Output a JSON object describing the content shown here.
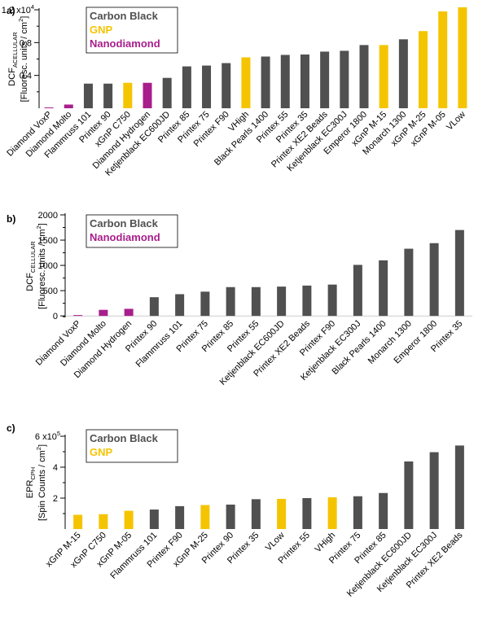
{
  "colors": {
    "carbon_black": "#505050",
    "gnp": "#f5c400",
    "nanodiamond": "#a81e8c",
    "axis": "#000000"
  },
  "chart_data": [
    {
      "type": "bar",
      "panel_label": "a)",
      "ylabel_main": "DCF",
      "ylabel_sub": "ACELLULAR",
      "ylabel_units": "[Fluoresc. units / cm",
      "ylabel_units_sup": "2",
      "ylabel_units_end": "]",
      "multiplier_base": "1.2 x10",
      "multiplier_exp": "4",
      "ylim": [
        0,
        12000
      ],
      "yticks": [
        {
          "value": 4000,
          "label": "0.4"
        },
        {
          "value": 8000,
          "label": "0.8"
        },
        {
          "value": 12000,
          "label": ""
        }
      ],
      "legend_placement": "top-left",
      "legend": [
        {
          "name": "Carbon Black",
          "group": "carbon_black"
        },
        {
          "name": "GNP",
          "group": "gnp"
        },
        {
          "name": "Nanodiamond",
          "group": "nanodiamond"
        }
      ],
      "categories": [
        "Diamond VoxP",
        "Diamond Molto",
        "Flammruss 101",
        "Printex 90",
        "xGnP C750",
        "Diamond Hydrogen",
        "Ketjenblack EC600JD",
        "Printex 85",
        "Printex 75",
        "Printex F90",
        "VHigh",
        "Black Pearls 1400",
        "Printex 55",
        "Printex 35",
        "Printex XE2 Beads",
        "Ketjenblack EC300J",
        "Emperor 1800",
        "xGnP M-15",
        "Monarch 1300",
        "xGnP M-25",
        "xGnP M-05",
        "VLow"
      ],
      "groups": [
        "nanodiamond",
        "nanodiamond",
        "carbon_black",
        "carbon_black",
        "gnp",
        "nanodiamond",
        "carbon_black",
        "carbon_black",
        "carbon_black",
        "carbon_black",
        "gnp",
        "carbon_black",
        "carbon_black",
        "carbon_black",
        "carbon_black",
        "carbon_black",
        "carbon_black",
        "gnp",
        "carbon_black",
        "gnp",
        "gnp",
        "gnp"
      ],
      "values": [
        60,
        450,
        3000,
        3000,
        3100,
        3100,
        3700,
        5100,
        5200,
        5500,
        6200,
        6300,
        6500,
        6550,
        6900,
        7000,
        7700,
        7700,
        8400,
        9400,
        11800,
        12300
      ]
    },
    {
      "type": "bar",
      "panel_label": "b)",
      "ylabel_main": "DCF",
      "ylabel_sub": "CELLULAR",
      "ylabel_units": "[Fluoresc. units / cm",
      "ylabel_units_sup": "2",
      "ylabel_units_end": "]",
      "ylim": [
        -30,
        2000
      ],
      "yticks": [
        {
          "value": 0,
          "label": "0"
        },
        {
          "value": 500,
          "label": "500"
        },
        {
          "value": 1000,
          "label": "1000"
        },
        {
          "value": 1500,
          "label": "1500"
        },
        {
          "value": 2000,
          "label": "2000"
        }
      ],
      "legend_placement": "top-left",
      "legend": [
        {
          "name": "Carbon Black",
          "group": "carbon_black"
        },
        {
          "name": "Nanodiamond",
          "group": "nanodiamond"
        }
      ],
      "categories": [
        "Diamond VoxP",
        "Diamond Molto",
        "Diamond Hydrogen",
        "Printex 90",
        "Flammruss 101",
        "Printex 75",
        "Printex 85",
        "Printex 55",
        "Ketjenblack EC600JD",
        "Printex XE2 Beads",
        "Printex F90",
        "Ketjenblack EC300J",
        "Black Pearls 1400",
        "Monarch 1300",
        "Emperor 1800",
        "Printex 35"
      ],
      "groups": [
        "nanodiamond",
        "nanodiamond",
        "nanodiamond",
        "carbon_black",
        "carbon_black",
        "carbon_black",
        "carbon_black",
        "carbon_black",
        "carbon_black",
        "carbon_black",
        "carbon_black",
        "carbon_black",
        "carbon_black",
        "carbon_black",
        "carbon_black",
        "carbon_black"
      ],
      "values": [
        5,
        120,
        140,
        370,
        430,
        480,
        570,
        570,
        580,
        600,
        620,
        1010,
        1100,
        1330,
        1440,
        1700
      ]
    },
    {
      "type": "bar",
      "panel_label": "c)",
      "ylabel_main": "EPR",
      "ylabel_sub": "CPH",
      "ylabel_units": "[Spin Counts / cm",
      "ylabel_units_sup": "2",
      "ylabel_units_end": "]",
      "multiplier_base": "6 x10",
      "multiplier_exp": "5",
      "ylim": [
        0,
        600000
      ],
      "yticks": [
        {
          "value": 200000,
          "label": "2"
        },
        {
          "value": 400000,
          "label": "4"
        },
        {
          "value": 600000,
          "label": ""
        }
      ],
      "legend_placement": "top-left",
      "legend": [
        {
          "name": "Carbon Black",
          "group": "carbon_black"
        },
        {
          "name": "GNP",
          "group": "gnp"
        }
      ],
      "categories": [
        "xGnP M-15",
        "xGnP C750",
        "xGnP M-05",
        "Flammruss 101",
        "Printex F90",
        "xGnP M-25",
        "Printex 90",
        "Printex 35",
        "VLow",
        "Printex 55",
        "VHigh",
        "Printex 75",
        "Printex 85",
        "Ketjenblack EC600JD",
        "Ketjenblack EC300J",
        "Printex XE2 Beads"
      ],
      "groups": [
        "gnp",
        "gnp",
        "gnp",
        "carbon_black",
        "carbon_black",
        "gnp",
        "carbon_black",
        "carbon_black",
        "gnp",
        "carbon_black",
        "gnp",
        "carbon_black",
        "carbon_black",
        "carbon_black",
        "carbon_black",
        "carbon_black"
      ],
      "values": [
        92000,
        96000,
        118000,
        126000,
        148000,
        155000,
        158000,
        193000,
        195000,
        200000,
        205000,
        212000,
        233000,
        437000,
        497000,
        540000
      ]
    }
  ]
}
